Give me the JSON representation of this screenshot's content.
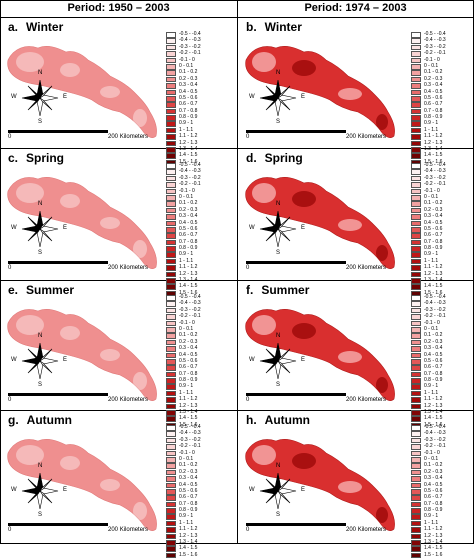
{
  "headers": {
    "left": "Period: 1950 – 2003",
    "right": "Period: 1974 – 2003"
  },
  "panels": [
    {
      "letter": "a.",
      "season": "Winter"
    },
    {
      "letter": "b.",
      "season": "Winter"
    },
    {
      "letter": "c.",
      "season": "Spring"
    },
    {
      "letter": "d.",
      "season": "Spring"
    },
    {
      "letter": "e.",
      "season": "Summer"
    },
    {
      "letter": "f.",
      "season": "Summer"
    },
    {
      "letter": "g.",
      "season": "Autumn"
    },
    {
      "letter": "h.",
      "season": "Autumn"
    }
  ],
  "legend": {
    "items": [
      {
        "label": "-0.5 - -0.4",
        "color": "#ffffff"
      },
      {
        "label": "-0.4 - -0.3",
        "color": "#fdf1f1"
      },
      {
        "label": "-0.3 - -0.2",
        "color": "#fbe3e3"
      },
      {
        "label": "-0.2 - -0.1",
        "color": "#f9d4d4"
      },
      {
        "label": "-0.1 - 0",
        "color": "#f7c4c4"
      },
      {
        "label": "0 - 0.1",
        "color": "#f4b3b3"
      },
      {
        "label": "0.1 - 0.2",
        "color": "#f2a2a2"
      },
      {
        "label": "0.2 - 0.3",
        "color": "#ef9090"
      },
      {
        "label": "0.3 - 0.4",
        "color": "#ec7e7e"
      },
      {
        "label": "0.4 - 0.5",
        "color": "#e86b6b"
      },
      {
        "label": "0.5 - 0.6",
        "color": "#e35858"
      },
      {
        "label": "0.6 - 0.7",
        "color": "#dd4545"
      },
      {
        "label": "0.7 - 0.8",
        "color": "#d53333"
      },
      {
        "label": "0.8 - 0.9",
        "color": "#cc2424"
      },
      {
        "label": "0.9 - 1",
        "color": "#c01818"
      },
      {
        "label": "1 - 1.1",
        "color": "#b31010"
      },
      {
        "label": "1.1 - 1.2",
        "color": "#a30a0a"
      },
      {
        "label": "1.2 - 1.3",
        "color": "#930606"
      },
      {
        "label": "1.3 - 1.4",
        "color": "#820404"
      },
      {
        "label": "1.4 - 1.5",
        "color": "#700202"
      },
      {
        "label": "1.5 - 1.6",
        "color": "#5e0101"
      }
    ]
  },
  "scale": {
    "start": "0",
    "end": "200",
    "unit": "Kilometers"
  },
  "compass": {
    "n": "N",
    "s": "S",
    "e": "E",
    "w": "W"
  },
  "colors": {
    "left_base": "#ef8f8f",
    "left_light": "#f6c1c1",
    "right_base": "#d92f2f",
    "right_dark": "#a00a0a",
    "right_light": "#f4a6a6"
  }
}
